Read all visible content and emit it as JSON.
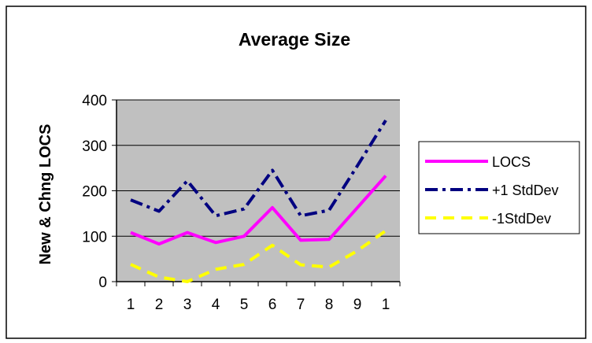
{
  "chart_data": {
    "type": "line",
    "title": "Average Size",
    "ylabel": "New & Chng LOCS",
    "xlabel": "",
    "categories": [
      "1",
      "2",
      "3",
      "4",
      "5",
      "6",
      "7",
      "8",
      "9",
      "1"
    ],
    "ylim": [
      0,
      400
    ],
    "yticks": [
      0,
      100,
      200,
      300,
      400
    ],
    "grid": "horizontal",
    "plot_background": "#c0c0c0",
    "legend_position": "right",
    "series": [
      {
        "name": "LOCS",
        "color": "#ff00ff",
        "dash": "solid",
        "values": [
          108,
          83,
          108,
          86,
          100,
          163,
          91,
          93,
          163,
          233
        ]
      },
      {
        "name": "+1 StdDev",
        "color": "#000080",
        "dash": "dashdot",
        "values": [
          180,
          155,
          222,
          145,
          160,
          245,
          145,
          157,
          255,
          355
        ]
      },
      {
        "name": "-1StdDev",
        "color": "#ffff00",
        "dash": "dashed",
        "values": [
          38,
          10,
          0,
          27,
          38,
          80,
          37,
          32,
          68,
          112
        ]
      }
    ]
  }
}
